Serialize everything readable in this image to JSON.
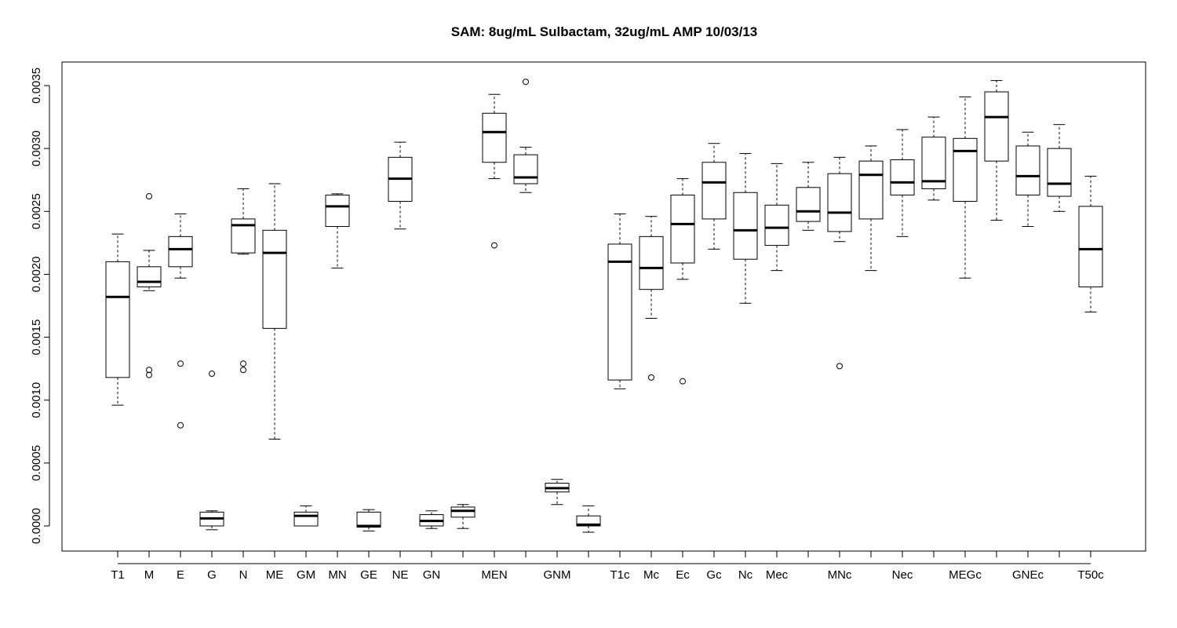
{
  "chart_data": {
    "type": "boxplot",
    "title": "SAM: 8ug/mL Sulbactam, 32ug/mL AMP 10/03/13",
    "xlabel": "",
    "ylabel": "",
    "ylim": [
      -0.0001,
      0.0037
    ],
    "yticks": [
      0.0,
      0.0005,
      0.001,
      0.0015,
      0.002,
      0.0025,
      0.003,
      0.0035
    ],
    "ytick_labels": [
      "0.0000",
      "0.0005",
      "0.0010",
      "0.0015",
      "0.0020",
      "0.0025",
      "0.0030",
      "0.0035"
    ],
    "categories": [
      "T1",
      "M",
      "E",
      "G",
      "N",
      "ME",
      "GM",
      "MN",
      "GE",
      "NE",
      "GN",
      "",
      "MEN",
      "",
      "GNM",
      "",
      "T1c",
      "Mc",
      "Ec",
      "Gc",
      "Nc",
      "Mec",
      "",
      "MNc",
      "",
      "Nec",
      "",
      "MEGc",
      "",
      "GNEc",
      "",
      "T50c"
    ],
    "boxes": [
      {
        "whislo": 0.00096,
        "q1": 0.00118,
        "med": 0.00182,
        "q3": 0.0021,
        "whishi": 0.00232,
        "fliers": []
      },
      {
        "whislo": 0.00187,
        "q1": 0.0019,
        "med": 0.00194,
        "q3": 0.00206,
        "whishi": 0.00219,
        "fliers": [
          0.00262,
          0.00124,
          0.0012
        ]
      },
      {
        "whislo": 0.00197,
        "q1": 0.00206,
        "med": 0.0022,
        "q3": 0.0023,
        "whishi": 0.00248,
        "fliers": [
          0.00129,
          0.0008
        ]
      },
      {
        "whislo": -3e-05,
        "q1": 0.0,
        "med": 6e-05,
        "q3": 0.00011,
        "whishi": 0.00012,
        "fliers": [
          0.00121
        ]
      },
      {
        "whislo": 0.00216,
        "q1": 0.00217,
        "med": 0.00239,
        "q3": 0.00244,
        "whishi": 0.00268,
        "fliers": [
          0.00129,
          0.00124
        ]
      },
      {
        "whislo": 0.00069,
        "q1": 0.00157,
        "med": 0.00217,
        "q3": 0.00235,
        "whishi": 0.00272,
        "fliers": []
      },
      {
        "whislo": 0.0,
        "q1": 0.0,
        "med": 8e-05,
        "q3": 0.00011,
        "whishi": 0.00016,
        "fliers": []
      },
      {
        "whislo": 0.00205,
        "q1": 0.00238,
        "med": 0.00254,
        "q3": 0.00263,
        "whishi": 0.00264,
        "fliers": []
      },
      {
        "whislo": -4e-05,
        "q1": -1e-05,
        "med": 0.0,
        "q3": 0.00011,
        "whishi": 0.00013,
        "fliers": []
      },
      {
        "whislo": 0.00236,
        "q1": 0.00258,
        "med": 0.00276,
        "q3": 0.00293,
        "whishi": 0.00305,
        "fliers": []
      },
      {
        "whislo": -2e-05,
        "q1": 0.0,
        "med": 4e-05,
        "q3": 9e-05,
        "whishi": 0.00012,
        "fliers": []
      },
      {
        "whislo": -2e-05,
        "q1": 7e-05,
        "med": 0.00012,
        "q3": 0.00015,
        "whishi": 0.00017,
        "fliers": []
      },
      {
        "whislo": 0.00276,
        "q1": 0.00289,
        "med": 0.00313,
        "q3": 0.00328,
        "whishi": 0.00343,
        "fliers": [
          0.00223
        ]
      },
      {
        "whislo": 0.00265,
        "q1": 0.00272,
        "med": 0.00277,
        "q3": 0.00295,
        "whishi": 0.00301,
        "fliers": [
          0.00353
        ]
      },
      {
        "whislo": 0.00017,
        "q1": 0.00027,
        "med": 0.0003,
        "q3": 0.00034,
        "whishi": 0.00037,
        "fliers": []
      },
      {
        "whislo": -5e-05,
        "q1": 0.0,
        "med": 1e-05,
        "q3": 8e-05,
        "whishi": 0.00016,
        "fliers": []
      },
      {
        "whislo": 0.00109,
        "q1": 0.00116,
        "med": 0.0021,
        "q3": 0.00224,
        "whishi": 0.00248,
        "fliers": []
      },
      {
        "whislo": 0.00165,
        "q1": 0.00188,
        "med": 0.00205,
        "q3": 0.0023,
        "whishi": 0.00246,
        "fliers": [
          0.00118
        ]
      },
      {
        "whislo": 0.00196,
        "q1": 0.00209,
        "med": 0.0024,
        "q3": 0.00263,
        "whishi": 0.00276,
        "fliers": [
          0.00115
        ]
      },
      {
        "whislo": 0.0022,
        "q1": 0.00244,
        "med": 0.00273,
        "q3": 0.00289,
        "whishi": 0.00304,
        "fliers": []
      },
      {
        "whislo": 0.00177,
        "q1": 0.00212,
        "med": 0.00235,
        "q3": 0.00265,
        "whishi": 0.00296,
        "fliers": []
      },
      {
        "whislo": 0.00203,
        "q1": 0.00223,
        "med": 0.00237,
        "q3": 0.00255,
        "whishi": 0.00288,
        "fliers": []
      },
      {
        "whislo": 0.00235,
        "q1": 0.00242,
        "med": 0.0025,
        "q3": 0.00269,
        "whishi": 0.00289,
        "fliers": []
      },
      {
        "whislo": 0.00226,
        "q1": 0.00234,
        "med": 0.00249,
        "q3": 0.0028,
        "whishi": 0.00293,
        "fliers": [
          0.00127
        ]
      },
      {
        "whislo": 0.00203,
        "q1": 0.00244,
        "med": 0.00279,
        "q3": 0.0029,
        "whishi": 0.00302,
        "fliers": []
      },
      {
        "whislo": 0.0023,
        "q1": 0.00263,
        "med": 0.00273,
        "q3": 0.00291,
        "whishi": 0.00315,
        "fliers": []
      },
      {
        "whislo": 0.00259,
        "q1": 0.00268,
        "med": 0.00274,
        "q3": 0.00309,
        "whishi": 0.00325,
        "fliers": []
      },
      {
        "whislo": 0.00197,
        "q1": 0.00258,
        "med": 0.00298,
        "q3": 0.00308,
        "whishi": 0.00341,
        "fliers": []
      },
      {
        "whislo": 0.00243,
        "q1": 0.0029,
        "med": 0.00325,
        "q3": 0.00345,
        "whishi": 0.00354,
        "fliers": []
      },
      {
        "whislo": 0.00238,
        "q1": 0.00263,
        "med": 0.00278,
        "q3": 0.00302,
        "whishi": 0.00313,
        "fliers": []
      },
      {
        "whislo": 0.0025,
        "q1": 0.00262,
        "med": 0.00272,
        "q3": 0.003,
        "whishi": 0.00319,
        "fliers": []
      },
      {
        "whislo": 0.0017,
        "q1": 0.0019,
        "med": 0.0022,
        "q3": 0.00254,
        "whishi": 0.00278,
        "fliers": []
      }
    ]
  }
}
